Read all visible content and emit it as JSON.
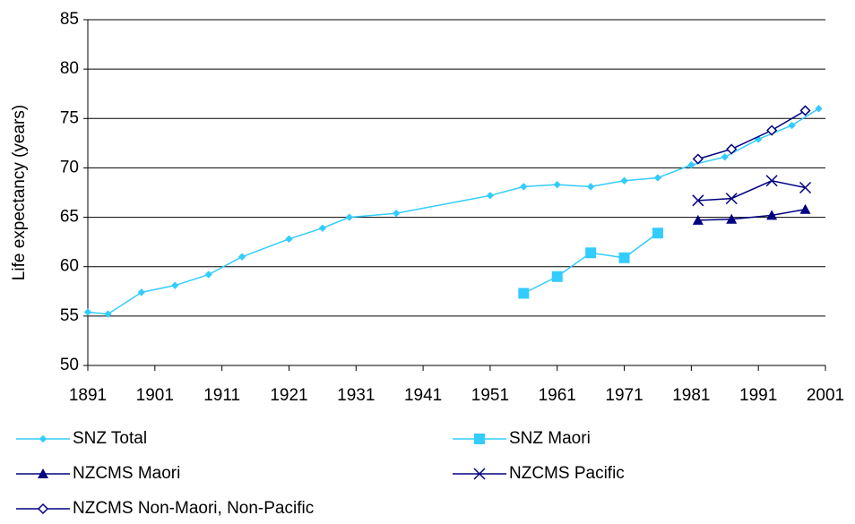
{
  "chart_data": {
    "type": "line",
    "y_label": "Life expectancy (years)",
    "xlim": [
      1891,
      2001
    ],
    "xticks": [
      1891,
      1901,
      1911,
      1921,
      1931,
      1941,
      1951,
      1961,
      1971,
      1981,
      1991,
      2001
    ],
    "ylim": [
      50,
      85
    ],
    "yticks": [
      50,
      55,
      60,
      65,
      70,
      75,
      80,
      85
    ],
    "grid": true,
    "legend": "bottom",
    "series": [
      {
        "name": "SNZ Total",
        "color": "#33ccff",
        "marker": "diamond",
        "x": [
          1891,
          1894,
          1899,
          1904,
          1909,
          1914,
          1921,
          1926,
          1930,
          1937,
          1951,
          1956,
          1961,
          1966,
          1971,
          1976,
          1981,
          1986,
          1991,
          1996,
          2000
        ],
        "values": [
          55.4,
          55.2,
          57.4,
          58.1,
          59.2,
          61.0,
          62.8,
          63.9,
          65.0,
          65.4,
          67.2,
          68.1,
          68.3,
          68.1,
          68.7,
          69.0,
          70.3,
          71.1,
          72.9,
          74.3,
          76.0
        ]
      },
      {
        "name": "SNZ Maori",
        "color": "#33ccff",
        "marker": "square",
        "x": [
          1956,
          1961,
          1966,
          1971,
          1976
        ],
        "values": [
          57.3,
          59.0,
          61.4,
          60.9,
          63.4
        ]
      },
      {
        "name": "NZCMS Maori",
        "color": "#000080",
        "marker": "triangle",
        "x": [
          1982,
          1987,
          1993,
          1998
        ],
        "values": [
          64.7,
          64.8,
          65.2,
          65.8
        ]
      },
      {
        "name": "NZCMS Pacific",
        "color": "#000080",
        "marker": "x",
        "x": [
          1982,
          1987,
          1993,
          1998
        ],
        "values": [
          66.7,
          66.9,
          68.7,
          68.0
        ]
      },
      {
        "name": "NZCMS Non-Maori, Non-Pacific",
        "color": "#000080",
        "marker": "open-diamond",
        "x": [
          1982,
          1987,
          1993,
          1998
        ],
        "values": [
          70.9,
          71.9,
          73.8,
          75.8
        ]
      }
    ]
  }
}
